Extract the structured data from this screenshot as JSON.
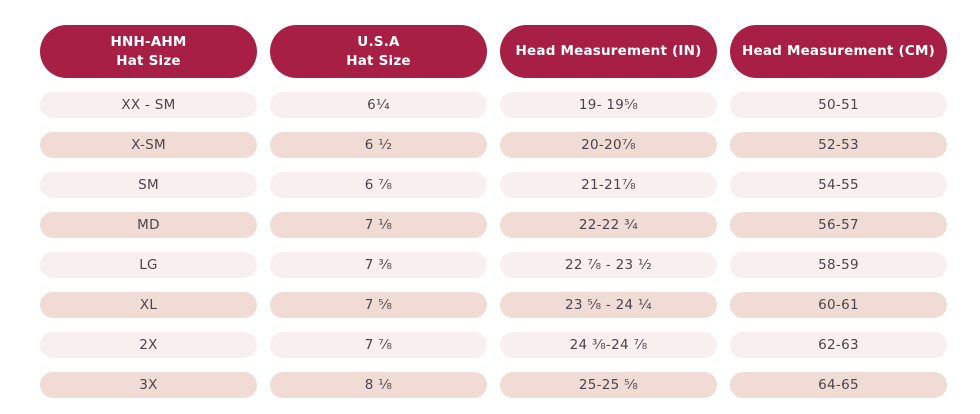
{
  "colors": {
    "header_background": "#A81F45",
    "header_text": "#FFFFFF",
    "row_light_background": "#F8F0EE",
    "row_dark_background": "#F1DCD5",
    "cell_text": "#4B4550",
    "page_background": "#FFFFFF"
  },
  "table": {
    "headers": [
      {
        "line1": "HNH-AHM",
        "line2": "Hat Size"
      },
      {
        "line1": "U.S.A",
        "line2": "Hat Size"
      },
      {
        "line1": "Head Measurement (IN)",
        "line2": ""
      },
      {
        "line1": "Head Measurement (CM)",
        "line2": ""
      }
    ],
    "rows": [
      {
        "hnh_ahm": "XX - SM",
        "usa": "6¹⁄₄",
        "inches": "19- 19⁵⁄₈",
        "cm": "50-51"
      },
      {
        "hnh_ahm": "X-SM",
        "usa": "6 ¹⁄₂",
        "inches": "20-20⁷⁄₈",
        "cm": "52-53"
      },
      {
        "hnh_ahm": "SM",
        "usa": "6 ⁷⁄₈",
        "inches": "21-21⁷⁄₈",
        "cm": "54-55"
      },
      {
        "hnh_ahm": "MD",
        "usa": "7 ¹⁄₈",
        "inches": "22-22 ³⁄₄",
        "cm": "56-57"
      },
      {
        "hnh_ahm": "LG",
        "usa": "7 ³⁄₈",
        "inches": "22 ⁷⁄₈ - 23 ¹⁄₂",
        "cm": "58-59"
      },
      {
        "hnh_ahm": "XL",
        "usa": "7 ⁵⁄₈",
        "inches": "23 ⁵⁄₈ - 24 ¹⁄₄",
        "cm": "60-61"
      },
      {
        "hnh_ahm": "2X",
        "usa": "7 ⁷⁄₈",
        "inches": "24 ³⁄₈-24 ⁷⁄₈",
        "cm": "62-63"
      },
      {
        "hnh_ahm": "3X",
        "usa": "8 ¹⁄₈",
        "inches": "25-25 ⁵⁄₈",
        "cm": "64-65"
      }
    ]
  }
}
